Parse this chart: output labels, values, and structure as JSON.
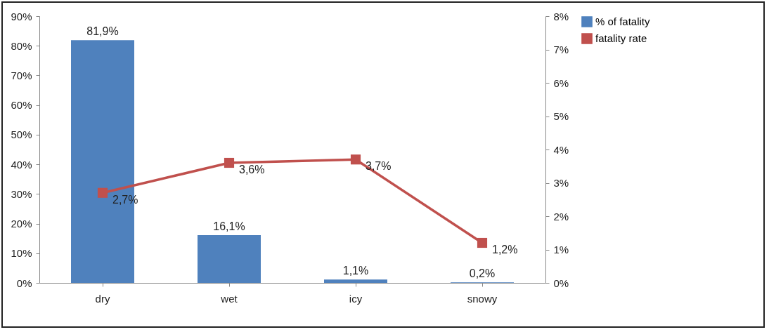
{
  "chart_data": {
    "type": "bar",
    "categories": [
      "dry",
      "wet",
      "icy",
      "snowy"
    ],
    "series": [
      {
        "name": "% of fatality",
        "color": "#4f81bd",
        "values": [
          81.9,
          16.1,
          1.1,
          0.2
        ],
        "value_labels": [
          "81,9%",
          "16,1%",
          "1,1%",
          "0,2%"
        ]
      },
      {
        "name": "fatality rate",
        "type": "line",
        "axis": "y2",
        "color": "#c0504d",
        "values": [
          2.7,
          3.6,
          3.7,
          1.2
        ],
        "value_labels": [
          "2,7%",
          "3,6%",
          "3,7%",
          "1,2%"
        ]
      }
    ],
    "ylim": [
      0,
      90
    ],
    "yticks": [
      {
        "value": 0,
        "label": "0%"
      },
      {
        "value": 10,
        "label": "10%"
      },
      {
        "value": 20,
        "label": "20%"
      },
      {
        "value": 30,
        "label": "30%"
      },
      {
        "value": 40,
        "label": "40%"
      },
      {
        "value": 50,
        "label": "50%"
      },
      {
        "value": 60,
        "label": "60%"
      },
      {
        "value": 70,
        "label": "70%"
      },
      {
        "value": 80,
        "label": "80%"
      },
      {
        "value": 90,
        "label": "90%"
      }
    ],
    "y2lim": [
      0,
      8
    ],
    "y2ticks": [
      {
        "value": 0,
        "label": "0%"
      },
      {
        "value": 1,
        "label": "1%"
      },
      {
        "value": 2,
        "label": "2%"
      },
      {
        "value": 3,
        "label": "3%"
      },
      {
        "value": 4,
        "label": "4%"
      },
      {
        "value": 5,
        "label": "5%"
      },
      {
        "value": 6,
        "label": "6%"
      },
      {
        "value": 7,
        "label": "7%"
      },
      {
        "value": 8,
        "label": "8%"
      }
    ],
    "legend": "right",
    "marker": "square"
  }
}
